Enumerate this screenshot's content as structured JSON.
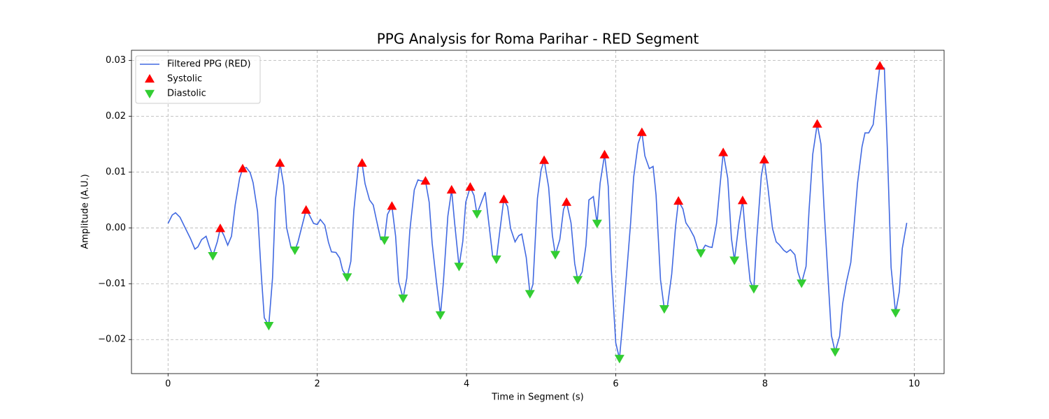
{
  "chart_data": {
    "type": "line",
    "title": "PPG Analysis for Roma Parihar - RED Segment",
    "xlabel": "Time in Segment (s)",
    "ylabel": "Amplitude (A.U.)",
    "xlim": [
      -0.49,
      10.4
    ],
    "ylim": [
      -0.0261,
      0.0318
    ],
    "xticks": [
      0,
      2,
      4,
      6,
      8,
      10
    ],
    "yticks": [
      {
        "value": -0.02,
        "label": "−0.02"
      },
      {
        "value": -0.01,
        "label": "−0.01"
      },
      {
        "value": 0,
        "label": "0.00"
      },
      0.01,
      0.02,
      0.03
    ],
    "grid": true,
    "legend": "upper left",
    "series": [
      {
        "name": "Filtered PPG (RED)",
        "color": "#4169e1",
        "marker": "line",
        "x": [
          0,
          0.056,
          0.1,
          0.16,
          0.23,
          0.3,
          0.36,
          0.4,
          0.45,
          0.51,
          0.55,
          0.6,
          0.66,
          0.7,
          0.75,
          0.8,
          0.85,
          0.9,
          0.96,
          1.0,
          1.05,
          1.1,
          1.14,
          1.2,
          1.25,
          1.29,
          1.35,
          1.4,
          1.44,
          1.5,
          1.55,
          1.59,
          1.65,
          1.7,
          1.74,
          1.8,
          1.85,
          1.89,
          1.95,
          2.0,
          2.04,
          2.1,
          2.15,
          2.19,
          2.25,
          2.3,
          2.34,
          2.4,
          2.45,
          2.49,
          2.55,
          2.6,
          2.64,
          2.7,
          2.75,
          2.79,
          2.85,
          2.9,
          2.94,
          3.0,
          3.05,
          3.09,
          3.15,
          3.2,
          3.24,
          3.3,
          3.35,
          3.39,
          3.45,
          3.5,
          3.54,
          3.6,
          3.65,
          3.69,
          3.75,
          3.8,
          3.84,
          3.9,
          3.95,
          3.99,
          4.05,
          4.1,
          4.14,
          4.2,
          4.25,
          4.29,
          4.35,
          4.4,
          4.44,
          4.5,
          4.55,
          4.59,
          4.65,
          4.7,
          4.74,
          4.8,
          4.85,
          4.89,
          4.95,
          5.0,
          5.04,
          5.1,
          5.15,
          5.19,
          5.25,
          5.3,
          5.34,
          5.4,
          5.45,
          5.49,
          5.55,
          5.6,
          5.64,
          5.7,
          5.75,
          5.79,
          5.85,
          5.9,
          5.94,
          6.0,
          6.05,
          6.09,
          6.15,
          6.2,
          6.24,
          6.3,
          6.35,
          6.39,
          6.45,
          6.5,
          6.54,
          6.6,
          6.65,
          6.69,
          6.75,
          6.8,
          6.84,
          6.9,
          6.94,
          6.99,
          7.05,
          7.1,
          7.14,
          7.2,
          7.25,
          7.29,
          7.35,
          7.4,
          7.44,
          7.5,
          7.55,
          7.59,
          7.65,
          7.7,
          7.74,
          7.8,
          7.85,
          7.89,
          7.95,
          7.99,
          8.04,
          8.1,
          8.15,
          8.19,
          8.25,
          8.29,
          8.34,
          8.4,
          8.44,
          8.49,
          8.55,
          8.59,
          8.64,
          8.7,
          8.75,
          8.79,
          8.85,
          8.89,
          8.94,
          9.0,
          9.04,
          9.09,
          9.15,
          9.19,
          9.24,
          9.3,
          9.34,
          9.39,
          9.45,
          9.49,
          9.54,
          9.6,
          9.64,
          9.69,
          9.75,
          9.8,
          9.84,
          9.9
        ],
        "values": [
          0.0008,
          0.0023,
          0.0027,
          0.0019,
          0,
          -0.0019,
          -0.0038,
          -0.0034,
          -0.0021,
          -0.0015,
          -0.0032,
          -0.005,
          -0.0025,
          -0.0001,
          -0.0014,
          -0.0031,
          -0.0015,
          0.0041,
          0.0089,
          0.0106,
          0.0108,
          0.0099,
          0.0081,
          0.0029,
          -0.0085,
          -0.0161,
          -0.0175,
          -0.009,
          0.0051,
          0.0116,
          0.0076,
          0,
          -0.0036,
          -0.004,
          -0.0026,
          0.0006,
          0.0032,
          0.0024,
          0.0008,
          0.0006,
          0.0015,
          0.0005,
          -0.0026,
          -0.0043,
          -0.0044,
          -0.0054,
          -0.0076,
          -0.0088,
          -0.006,
          0.0031,
          0.0111,
          0.0116,
          0.0079,
          0.005,
          0.0041,
          0.0016,
          -0.0021,
          -0.0022,
          0.0024,
          0.0039,
          -0.0015,
          -0.0096,
          -0.0126,
          -0.009,
          -0.0005,
          0.0068,
          0.0086,
          0.0084,
          0.0084,
          0.0046,
          -0.0028,
          -0.01,
          -0.0156,
          -0.0098,
          0.0021,
          0.0068,
          0.001,
          -0.0069,
          -0.0024,
          0.0046,
          0.0073,
          0.0058,
          0.0025,
          0.0046,
          0.0064,
          0.0019,
          -0.005,
          -0.0056,
          -0.0013,
          0.0051,
          0.0038,
          -0.0001,
          -0.0025,
          -0.0014,
          -0.0011,
          -0.0053,
          -0.0118,
          -0.0101,
          0.0053,
          0.0104,
          0.0121,
          0.0073,
          -0.0013,
          -0.0048,
          -0.0021,
          0.0033,
          0.0046,
          0.0009,
          -0.0064,
          -0.0093,
          -0.0079,
          -0.0032,
          0.005,
          0.0056,
          0.0008,
          0.008,
          0.0131,
          0.0074,
          -0.0074,
          -0.0206,
          -0.0234,
          -0.0174,
          -0.0074,
          0.001,
          0.0091,
          0.0151,
          0.0171,
          0.0129,
          0.0106,
          0.011,
          0.0059,
          -0.0093,
          -0.0145,
          -0.0143,
          -0.0083,
          0.0001,
          0.0048,
          0.0034,
          0.0009,
          -0.0001,
          -0.0016,
          -0.0038,
          -0.0045,
          -0.0031,
          -0.0034,
          -0.0035,
          0.0008,
          0.008,
          0.0135,
          0.0089,
          -0.0019,
          -0.0058,
          0.0008,
          0.0049,
          -0.0016,
          -0.0095,
          -0.0109,
          -0.0018,
          0.0093,
          0.0122,
          0.0071,
          -0.0001,
          -0.0025,
          -0.003,
          -0.004,
          -0.0044,
          -0.0039,
          -0.0048,
          -0.0079,
          -0.0099,
          -0.0069,
          0.0032,
          0.0132,
          0.0186,
          0.015,
          0.0038,
          -0.0101,
          -0.0193,
          -0.0222,
          -0.0194,
          -0.0136,
          -0.0098,
          -0.0062,
          -0.0001,
          0.008,
          0.0145,
          0.017,
          0.017,
          0.0185,
          0.0234,
          0.029,
          0.0286,
          0.0139,
          -0.0071,
          -0.0152,
          -0.0114,
          -0.0037,
          0.0009
        ]
      },
      {
        "name": "Systolic",
        "color": "#ff0000",
        "marker": "triangle-up",
        "x": [
          0.7,
          1.0,
          1.5,
          1.85,
          2.6,
          3.0,
          3.45,
          3.8,
          4.05,
          4.5,
          5.04,
          5.34,
          5.85,
          6.35,
          6.84,
          7.44,
          7.7,
          7.99,
          8.7,
          9.54
        ],
        "values": [
          -0.0001,
          0.0106,
          0.0116,
          0.0032,
          0.0116,
          0.0039,
          0.0084,
          0.0068,
          0.0073,
          0.0051,
          0.0121,
          0.0046,
          0.0131,
          0.0171,
          0.0048,
          0.0135,
          0.0049,
          0.0122,
          0.0186,
          0.029
        ]
      },
      {
        "name": "Diastolic",
        "color": "#32cd32",
        "marker": "triangle-down",
        "x": [
          0.6,
          1.35,
          1.7,
          2.4,
          2.9,
          3.15,
          3.65,
          3.9,
          4.14,
          4.4,
          4.85,
          5.19,
          5.49,
          5.75,
          6.05,
          6.65,
          7.14,
          7.59,
          7.85,
          8.49,
          8.94,
          9.75
        ],
        "values": [
          -0.005,
          -0.0175,
          -0.004,
          -0.0088,
          -0.0022,
          -0.0126,
          -0.0156,
          -0.0069,
          0.0025,
          -0.0056,
          -0.0118,
          -0.0048,
          -0.0093,
          0.0008,
          -0.0234,
          -0.0145,
          -0.0045,
          -0.0058,
          -0.0109,
          -0.0099,
          -0.0222,
          -0.0152
        ]
      }
    ]
  }
}
